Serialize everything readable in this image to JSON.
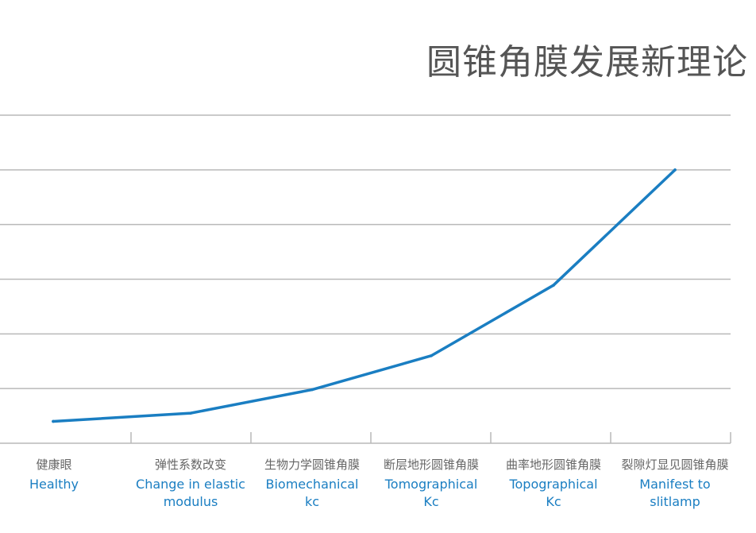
{
  "title": "圆锥角膜发展新理论",
  "colors": {
    "line": "#1a7ec2",
    "grid": "#b9b9b9",
    "title": "#555555",
    "cn": "#666666",
    "en": "#1a7ec2"
  },
  "chart_data": {
    "type": "line",
    "title": "圆锥角膜发展新理论",
    "xlabel": "",
    "ylabel": "",
    "grid": true,
    "ylim": [
      0,
      6
    ],
    "categories": [
      {
        "cn": "健康眼",
        "en": "Healthy"
      },
      {
        "cn": "弹性系数改变",
        "en": "Change in elastic\nmodulus"
      },
      {
        "cn": "生物力学圆锥角膜",
        "en": "Biomechanical\nkc"
      },
      {
        "cn": "断层地形圆锥角膜",
        "en": "Tomographical\nKc"
      },
      {
        "cn": "曲率地形圆锥角膜",
        "en": "Topographical\nKc"
      },
      {
        "cn": "裂隙灯显见圆锥角膜",
        "en": "Manifest to\nslitlamp"
      }
    ],
    "series": [
      {
        "values": [
          0.4,
          0.55,
          0.98,
          1.6,
          2.89,
          5.0
        ]
      }
    ]
  }
}
